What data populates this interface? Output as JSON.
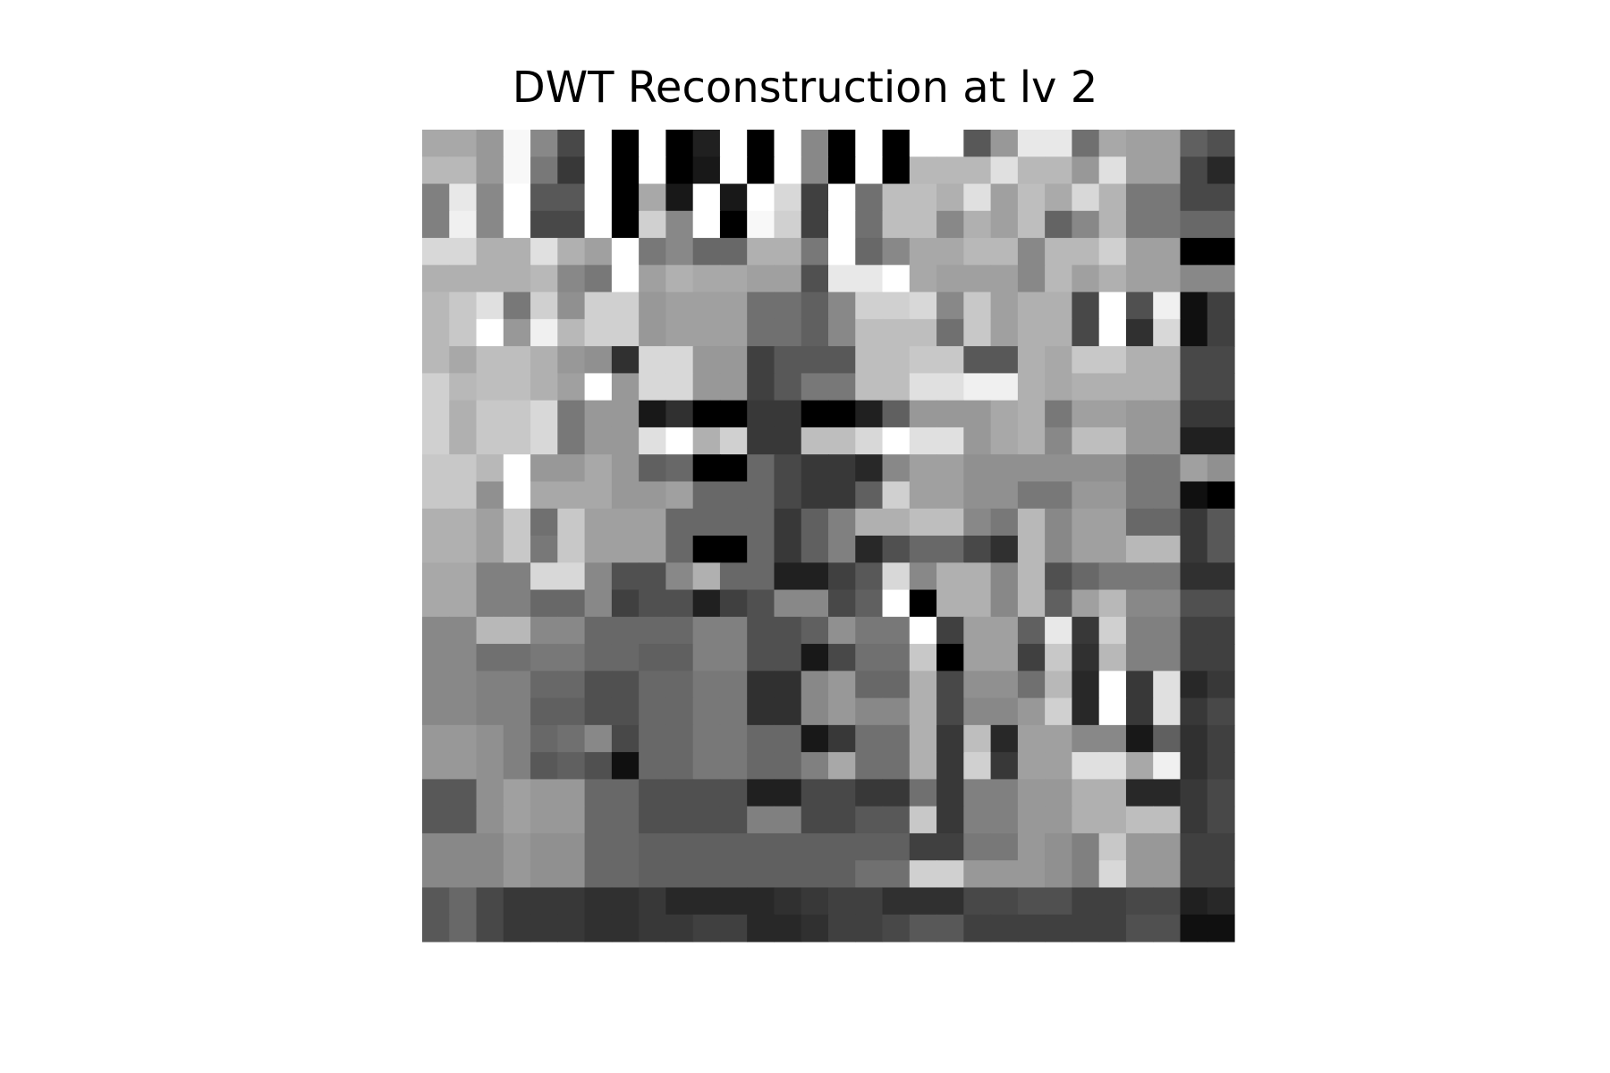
{
  "chart_data": {
    "type": "heatmap",
    "title": "DWT Reconstruction at lv 2",
    "colormap": "gray",
    "axes_visible": false,
    "value_range": [
      0,
      255
    ],
    "rows": 30,
    "cols": 30,
    "values": [
      [
        168,
        168,
        152,
        248,
        136,
        72,
        255,
        0,
        255,
        0,
        32,
        255,
        0,
        255,
        136,
        0,
        255,
        0,
        255,
        255,
        88,
        152,
        232,
        232,
        112,
        168,
        160,
        160,
        96,
        80
      ],
      [
        184,
        184,
        152,
        248,
        120,
        56,
        255,
        0,
        255,
        0,
        24,
        255,
        0,
        255,
        136,
        0,
        255,
        0,
        184,
        184,
        184,
        224,
        184,
        184,
        152,
        224,
        160,
        160,
        72,
        40
      ],
      [
        128,
        232,
        136,
        255,
        88,
        88,
        255,
        0,
        168,
        24,
        255,
        24,
        255,
        216,
        64,
        255,
        112,
        190,
        190,
        176,
        224,
        160,
        190,
        170,
        216,
        180,
        120,
        120,
        72,
        72
      ],
      [
        128,
        240,
        136,
        255,
        72,
        72,
        255,
        0,
        208,
        136,
        255,
        0,
        248,
        208,
        64,
        255,
        112,
        190,
        190,
        136,
        176,
        160,
        190,
        100,
        136,
        180,
        120,
        120,
        104,
        104
      ],
      [
        216,
        216,
        176,
        176,
        224,
        176,
        160,
        255,
        120,
        136,
        104,
        104,
        176,
        176,
        120,
        255,
        104,
        136,
        168,
        168,
        184,
        184,
        136,
        184,
        184,
        208,
        160,
        160,
        0,
        0
      ],
      [
        176,
        176,
        176,
        176,
        184,
        136,
        120,
        255,
        160,
        176,
        168,
        168,
        160,
        160,
        80,
        232,
        232,
        255,
        168,
        160,
        160,
        160,
        136,
        184,
        160,
        176,
        160,
        160,
        136,
        136
      ],
      [
        184,
        200,
        224,
        120,
        208,
        144,
        208,
        208,
        152,
        160,
        160,
        160,
        112,
        112,
        96,
        136,
        208,
        208,
        216,
        136,
        200,
        160,
        176,
        176,
        72,
        255,
        80,
        240,
        16,
        64
      ],
      [
        184,
        200,
        255,
        152,
        240,
        184,
        208,
        208,
        152,
        160,
        160,
        160,
        112,
        112,
        96,
        136,
        190,
        190,
        190,
        112,
        200,
        160,
        176,
        176,
        72,
        255,
        48,
        216,
        16,
        64
      ],
      [
        184,
        168,
        190,
        190,
        176,
        152,
        144,
        48,
        216,
        216,
        152,
        152,
        64,
        88,
        88,
        88,
        190,
        190,
        200,
        200,
        88,
        88,
        176,
        168,
        200,
        200,
        176,
        176,
        72,
        72
      ],
      [
        208,
        184,
        190,
        190,
        176,
        160,
        255,
        152,
        216,
        216,
        152,
        152,
        64,
        88,
        120,
        120,
        190,
        190,
        224,
        224,
        240,
        240,
        176,
        168,
        176,
        176,
        176,
        176,
        72,
        72
      ],
      [
        208,
        176,
        200,
        200,
        216,
        120,
        152,
        152,
        24,
        48,
        0,
        0,
        56,
        56,
        0,
        0,
        32,
        96,
        152,
        152,
        152,
        168,
        176,
        120,
        160,
        160,
        152,
        152,
        56,
        56
      ],
      [
        208,
        176,
        200,
        200,
        216,
        120,
        152,
        152,
        224,
        255,
        176,
        208,
        56,
        56,
        190,
        190,
        216,
        255,
        224,
        224,
        152,
        168,
        176,
        136,
        190,
        190,
        152,
        152,
        32,
        32
      ],
      [
        200,
        200,
        184,
        255,
        152,
        152,
        168,
        152,
        96,
        104,
        0,
        0,
        104,
        72,
        56,
        56,
        40,
        136,
        160,
        160,
        144,
        144,
        144,
        144,
        144,
        144,
        120,
        120,
        160,
        144
      ],
      [
        200,
        200,
        144,
        255,
        168,
        168,
        168,
        152,
        152,
        160,
        104,
        104,
        104,
        72,
        56,
        56,
        96,
        208,
        160,
        160,
        144,
        144,
        120,
        120,
        152,
        152,
        120,
        120,
        16,
        0
      ],
      [
        176,
        176,
        160,
        200,
        112,
        200,
        160,
        160,
        160,
        104,
        104,
        104,
        104,
        56,
        96,
        128,
        176,
        176,
        190,
        190,
        136,
        120,
        184,
        136,
        160,
        160,
        104,
        104,
        56,
        88
      ],
      [
        176,
        176,
        160,
        200,
        120,
        200,
        160,
        160,
        160,
        104,
        0,
        0,
        104,
        56,
        96,
        128,
        40,
        80,
        104,
        104,
        72,
        48,
        184,
        136,
        160,
        160,
        184,
        184,
        56,
        88
      ],
      [
        168,
        168,
        128,
        128,
        216,
        216,
        136,
        80,
        80,
        136,
        176,
        104,
        104,
        32,
        32,
        64,
        88,
        216,
        136,
        176,
        176,
        136,
        184,
        80,
        104,
        120,
        120,
        120,
        48,
        48
      ],
      [
        168,
        168,
        128,
        128,
        104,
        104,
        136,
        64,
        80,
        80,
        32,
        64,
        80,
        136,
        136,
        72,
        96,
        255,
        0,
        176,
        176,
        136,
        184,
        96,
        160,
        184,
        136,
        136,
        80,
        80
      ],
      [
        136,
        136,
        184,
        184,
        136,
        136,
        104,
        104,
        104,
        104,
        128,
        128,
        80,
        80,
        96,
        144,
        120,
        120,
        255,
        64,
        160,
        160,
        96,
        232,
        56,
        208,
        128,
        128,
        64,
        64
      ],
      [
        136,
        136,
        112,
        112,
        120,
        120,
        104,
        104,
        96,
        96,
        128,
        128,
        80,
        80,
        24,
        72,
        112,
        112,
        200,
        0,
        160,
        160,
        64,
        200,
        48,
        184,
        128,
        128,
        64,
        64
      ],
      [
        136,
        136,
        128,
        128,
        104,
        104,
        80,
        80,
        104,
        104,
        120,
        120,
        48,
        48,
        136,
        152,
        104,
        104,
        176,
        72,
        144,
        144,
        112,
        184,
        40,
        255,
        56,
        224,
        40,
        56
      ],
      [
        136,
        136,
        128,
        128,
        96,
        96,
        80,
        80,
        104,
        104,
        120,
        120,
        48,
        48,
        136,
        152,
        136,
        136,
        176,
        72,
        136,
        136,
        152,
        208,
        40,
        255,
        56,
        224,
        56,
        72
      ],
      [
        152,
        152,
        144,
        128,
        104,
        112,
        136,
        72,
        104,
        104,
        120,
        120,
        104,
        104,
        24,
        56,
        112,
        112,
        176,
        56,
        190,
        40,
        160,
        160,
        136,
        136,
        24,
        96,
        48,
        64
      ],
      [
        152,
        152,
        144,
        128,
        88,
        96,
        80,
        16,
        104,
        104,
        120,
        120,
        104,
        104,
        128,
        168,
        112,
        112,
        176,
        56,
        208,
        56,
        160,
        160,
        224,
        224,
        168,
        240,
        48,
        64
      ],
      [
        88,
        88,
        144,
        160,
        152,
        152,
        104,
        104,
        80,
        80,
        80,
        80,
        32,
        32,
        72,
        72,
        56,
        56,
        112,
        56,
        128,
        128,
        152,
        152,
        176,
        176,
        40,
        40,
        56,
        72
      ],
      [
        88,
        88,
        144,
        160,
        152,
        152,
        104,
        104,
        80,
        80,
        80,
        80,
        128,
        128,
        72,
        72,
        88,
        88,
        200,
        56,
        128,
        128,
        152,
        152,
        176,
        176,
        190,
        190,
        56,
        72
      ],
      [
        136,
        136,
        136,
        152,
        144,
        144,
        104,
        104,
        96,
        96,
        96,
        96,
        96,
        96,
        96,
        96,
        96,
        96,
        64,
        64,
        120,
        120,
        152,
        144,
        128,
        200,
        152,
        152,
        64,
        64
      ],
      [
        136,
        136,
        136,
        152,
        144,
        144,
        104,
        104,
        96,
        96,
        96,
        96,
        96,
        96,
        96,
        96,
        112,
        112,
        208,
        208,
        152,
        152,
        152,
        144,
        128,
        216,
        152,
        152,
        64,
        64
      ],
      [
        88,
        104,
        72,
        56,
        56,
        56,
        48,
        48,
        56,
        40,
        40,
        40,
        40,
        48,
        56,
        64,
        64,
        48,
        48,
        48,
        72,
        72,
        80,
        80,
        64,
        64,
        72,
        72,
        32,
        40
      ],
      [
        88,
        104,
        72,
        56,
        56,
        56,
        48,
        48,
        56,
        56,
        64,
        64,
        40,
        40,
        48,
        64,
        64,
        72,
        88,
        88,
        64,
        64,
        64,
        64,
        64,
        64,
        80,
        80,
        16,
        16
      ]
    ]
  }
}
